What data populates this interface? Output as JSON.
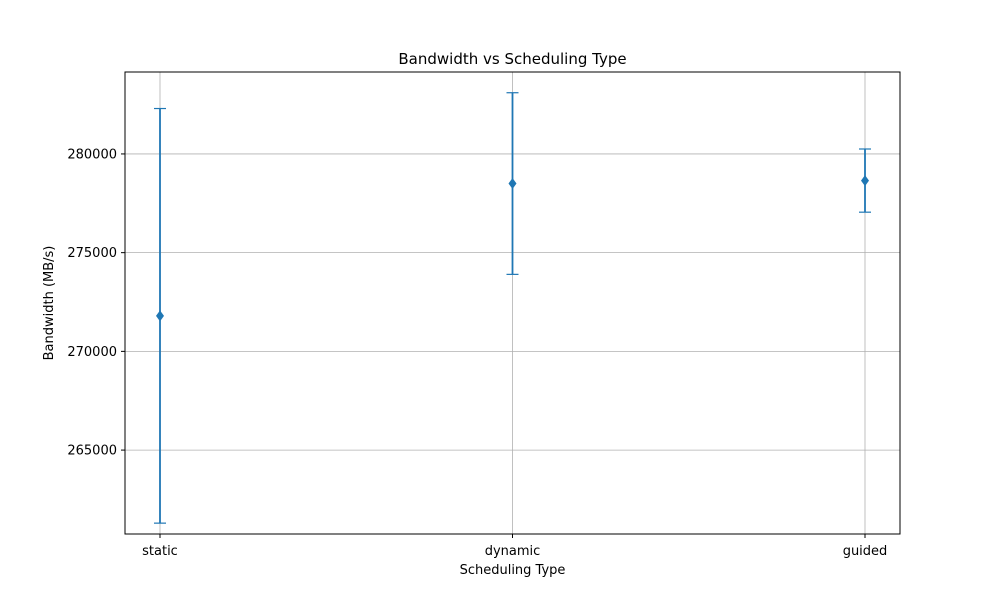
{
  "chart_data": {
    "type": "errorbar",
    "title": "Bandwidth vs Scheduling Type",
    "xlabel": "Scheduling Type",
    "ylabel": "Bandwidth (MB/s)",
    "categories": [
      "static",
      "dynamic",
      "guided"
    ],
    "values": [
      271800,
      278500,
      278650
    ],
    "errors": [
      10500,
      4600,
      1600
    ],
    "ylim": [
      260750,
      284150
    ],
    "yticks": [
      265000,
      270000,
      275000,
      280000
    ],
    "ytick_labels": [
      "265000",
      "270000",
      "275000",
      "280000"
    ],
    "grid": true,
    "marker": "diamond",
    "color": "#1f77b4"
  }
}
